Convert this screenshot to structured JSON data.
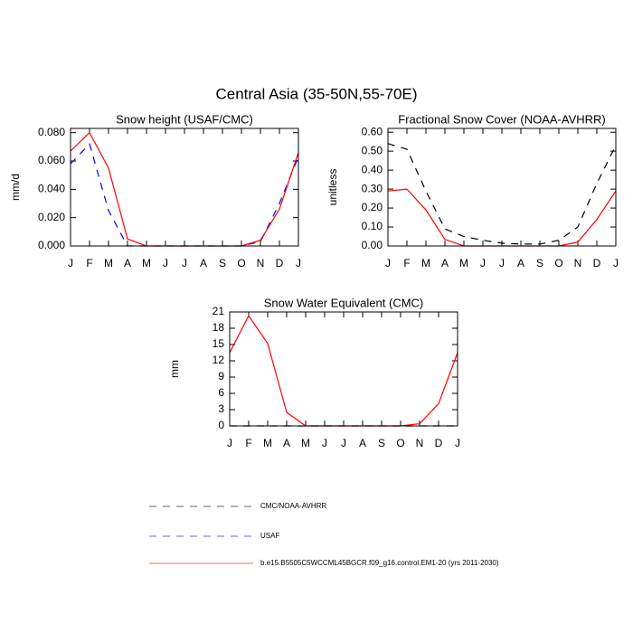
{
  "title": "Central Asia (35-50N,55-70E)",
  "legend": [
    {
      "name": "CMC/NOAA-AVHRR",
      "color": "#000000",
      "dash": "8,7"
    },
    {
      "name": "USAF",
      "color": "#0000ff",
      "dash": "8,7"
    },
    {
      "name": "b.e15.B5505C5WCCML45BGCR.f09_g16.control.EM1-20 (yrs 2011-2030)",
      "color": "#ff0000",
      "dash": "none"
    }
  ],
  "chart_data": [
    {
      "type": "line",
      "title": "Snow height (USAF/CMC)",
      "y_label": "mm/d",
      "categories": [
        "J",
        "F",
        "M",
        "A",
        "M",
        "J",
        "J",
        "A",
        "S",
        "O",
        "N",
        "D",
        "J"
      ],
      "ylim": [
        0,
        0.083
      ],
      "yticks": [
        {
          "value": 0,
          "label": "0.000"
        },
        {
          "value": 0.02,
          "label": "0.020"
        },
        {
          "value": 0.04,
          "label": "0.040"
        },
        {
          "value": 0.06,
          "label": "0.060"
        },
        {
          "value": 0.08,
          "label": "0.080"
        }
      ],
      "series": [
        {
          "color": "#0000ff",
          "dash": "8,7",
          "values": [
            0.058,
            0.072,
            0.025,
            0,
            0,
            0,
            0,
            0,
            0,
            0,
            0.003,
            0.03,
            0.063
          ]
        },
        {
          "color": "#ff0000",
          "dash": "none",
          "values": [
            0.067,
            0.08,
            0.055,
            0.005,
            0,
            0,
            0,
            0,
            0,
            0,
            0.004,
            0.026,
            0.066
          ]
        }
      ]
    },
    {
      "type": "line",
      "title": "Fractional Snow Cover (NOAA-AVHRR)",
      "y_label": "unitless",
      "categories": [
        "J",
        "F",
        "M",
        "A",
        "M",
        "J",
        "J",
        "A",
        "S",
        "O",
        "N",
        "D",
        "J"
      ],
      "ylim": [
        0,
        0.62
      ],
      "yticks": [
        {
          "value": 0,
          "label": "0.00"
        },
        {
          "value": 0.1,
          "label": "0.10"
        },
        {
          "value": 0.2,
          "label": "0.20"
        },
        {
          "value": 0.3,
          "label": "0.30"
        },
        {
          "value": 0.4,
          "label": "0.40"
        },
        {
          "value": 0.5,
          "label": "0.50"
        },
        {
          "value": 0.6,
          "label": "0.60"
        }
      ],
      "series": [
        {
          "color": "#000000",
          "dash": "8,7",
          "values": [
            0.54,
            0.51,
            0.29,
            0.09,
            0.05,
            0.03,
            0.015,
            0.01,
            0.01,
            0.03,
            0.1,
            0.33,
            0.53
          ]
        },
        {
          "color": "#ff0000",
          "dash": "none",
          "values": [
            0.29,
            0.3,
            0.19,
            0.035,
            0,
            0,
            0,
            0,
            0,
            0,
            0.02,
            0.14,
            0.29
          ]
        }
      ]
    },
    {
      "type": "line",
      "title": "Snow Water Equivalent (CMC)",
      "y_label": "mm",
      "categories": [
        "J",
        "F",
        "M",
        "A",
        "M",
        "J",
        "J",
        "A",
        "S",
        "O",
        "N",
        "D",
        "J"
      ],
      "ylim": [
        0,
        21
      ],
      "yticks": [
        0,
        3,
        6,
        9,
        12,
        15,
        18,
        21
      ],
      "series": [
        {
          "color": "#000000",
          "dash": "8,7",
          "values": [
            0,
            0,
            0,
            0,
            0,
            0,
            0,
            0,
            0,
            0,
            0,
            0,
            0
          ]
        },
        {
          "color": "#ff0000",
          "dash": "none",
          "values": [
            13.5,
            20.3,
            15.2,
            2.5,
            0,
            0,
            0,
            0,
            0,
            0,
            0.4,
            4.1,
            13.5
          ]
        }
      ]
    }
  ]
}
